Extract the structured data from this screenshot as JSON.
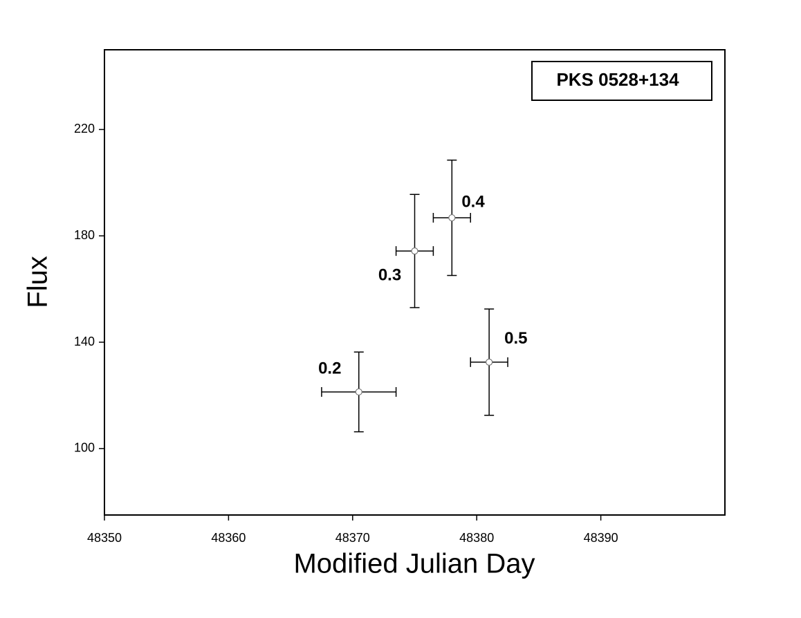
{
  "chart_data": {
    "type": "errorbar",
    "xlabel": "Modified Julian Day",
    "ylabel": "Flux",
    "annotation": "PKS 0528+134",
    "xlim": [
      48350,
      48400
    ],
    "xticks": [
      48350,
      48360,
      48370,
      48380,
      48390
    ],
    "ylim": [
      75,
      250
    ],
    "yticks": [
      100,
      140,
      180,
      220
    ],
    "series": [
      {
        "x": [
          48370.5,
          48375,
          48378,
          48381
        ],
        "values": [
          121.3,
          174.3,
          186.8,
          132.5
        ],
        "xerr": [
          3,
          1.5,
          1.5,
          1.5
        ],
        "yerr": [
          15,
          21.3,
          21.7,
          20
        ],
        "point_labels": [
          "0.2",
          "0.3",
          "0.4",
          "0.5"
        ],
        "color": "#000000"
      }
    ]
  }
}
